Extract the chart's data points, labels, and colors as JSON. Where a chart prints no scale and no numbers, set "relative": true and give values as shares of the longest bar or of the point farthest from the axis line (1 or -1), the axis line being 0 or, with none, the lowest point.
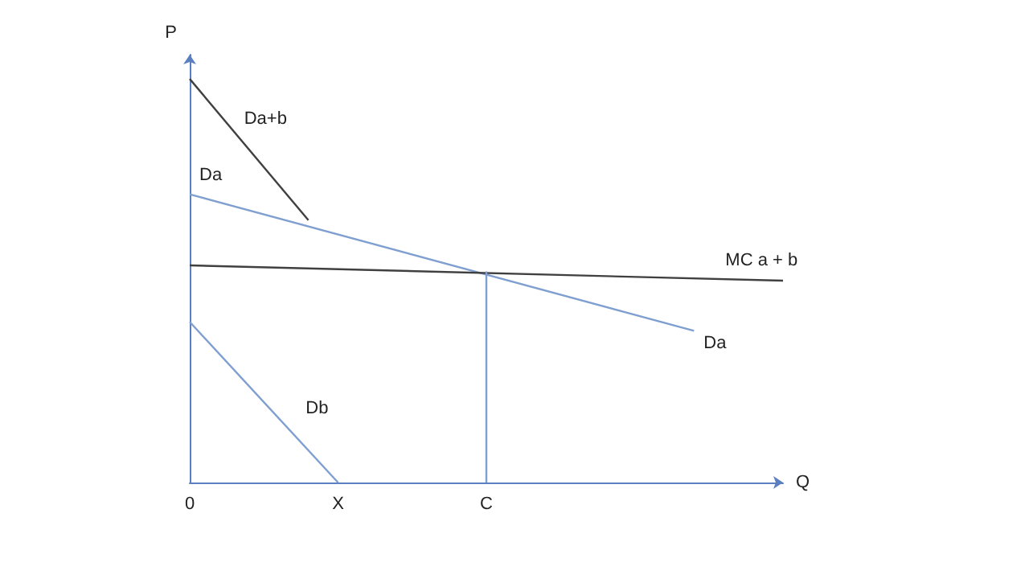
{
  "chart_data": {
    "type": "line",
    "relative": true,
    "xlabel": "Q",
    "ylabel": "P",
    "categories": [
      "0",
      null,
      null,
      null,
      null,
      "X",
      null,
      null,
      null,
      null,
      "C",
      null,
      null,
      null,
      null,
      null,
      null,
      null,
      null,
      null,
      null
    ],
    "grid": false,
    "marker": "none",
    "line_style": "solid",
    "series": [
      {
        "name": "Da+b",
        "color": "#404040",
        "values": [
          1,
          null,
          null,
          null,
          0.65,
          null,
          null,
          null,
          null,
          null,
          null,
          null,
          null,
          null,
          null,
          null,
          null,
          null,
          null,
          null,
          null
        ]
      },
      {
        "name": "Da",
        "color": "#7f9fd0",
        "values": [
          0.714,
          null,
          null,
          null,
          null,
          null,
          null,
          null,
          null,
          null,
          null,
          null,
          null,
          null,
          null,
          null,
          null,
          0.376,
          null,
          null,
          null
        ]
      },
      {
        "name": "MC a + b",
        "color": "#404040",
        "values": [
          0.538,
          null,
          null,
          null,
          null,
          null,
          null,
          null,
          null,
          null,
          null,
          null,
          null,
          null,
          null,
          null,
          null,
          null,
          null,
          null,
          0.5
        ]
      },
      {
        "name": "Db",
        "color": "#7f9fd0",
        "values": [
          0.398,
          null,
          null,
          null,
          null,
          0,
          null,
          null,
          null,
          null,
          null,
          null,
          null,
          null,
          null,
          null,
          null,
          null,
          null,
          null,
          null
        ]
      },
      {
        "color": "#7f9fd0",
        "x": [
          "C",
          "C"
        ],
        "values": [
          0.523,
          0
        ]
      }
    ],
    "annotations": [
      "Da"
    ]
  }
}
